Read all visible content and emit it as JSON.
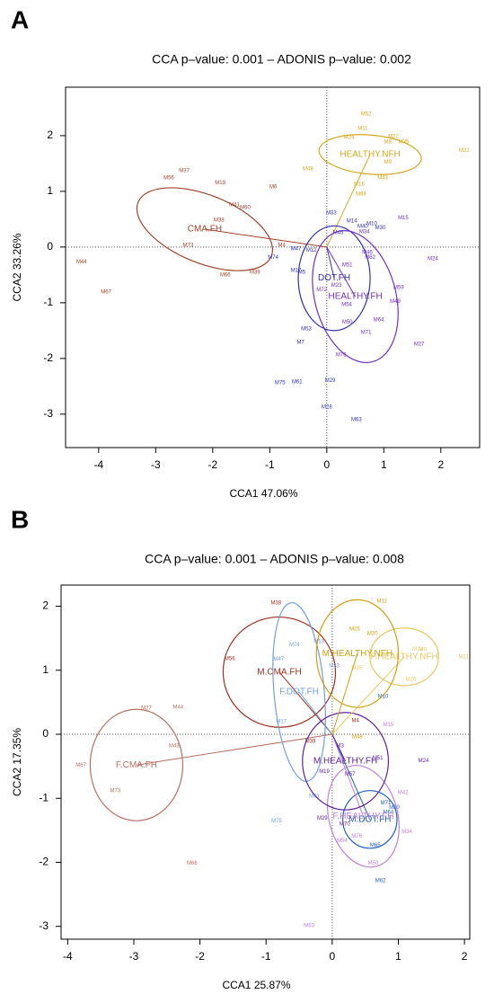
{
  "chart_data": [
    {
      "type": "scatter",
      "panel": "A",
      "title": "CCA p–value: 0.001 – ADONIS p–value: 0.002",
      "xlabel": "CCA1 47.06%",
      "ylabel": "CCA2 33.26%",
      "xlim": [
        -4.58,
        2.68
      ],
      "ylim": [
        -3.6,
        2.87
      ],
      "xticks": [
        -4,
        -3,
        -2,
        -1,
        0,
        1,
        2
      ],
      "yticks": [
        -3,
        -2,
        -1,
        0,
        1,
        2
      ],
      "series": [
        {
          "name": "HEALTHY.NFH",
          "color": "#d4a820",
          "labels": [
            "M52",
            "M11",
            "M24",
            "M22",
            "M8",
            "M35",
            "M9",
            "M48",
            "M43",
            "M21",
            "M16",
            "M69"
          ],
          "x": [
            0.69,
            0.63,
            0.39,
            1.17,
            1.07,
            1.35,
            1.07,
            -0.33,
            0.98,
            2.41,
            0.57,
            0.6
          ],
          "values": [
            2.39,
            2.13,
            1.97,
            1.98,
            1.89,
            1.89,
            1.52,
            1.4,
            1.24,
            1.73,
            1.13,
            0.95
          ],
          "centroid": [
            0.76,
            1.66
          ],
          "ellipse": {
            "rx": 0.9,
            "ry": 0.35,
            "angle": 5
          }
        },
        {
          "name": "CMA.FH",
          "color": "#a0442a",
          "labels": [
            "M37",
            "M56",
            "M19",
            "M6",
            "M41",
            "M60",
            "M38",
            "M73",
            "M4",
            "M66",
            "M39",
            "M44",
            "M67"
          ],
          "x": [
            -2.5,
            -2.77,
            -1.87,
            -0.94,
            -1.62,
            -1.43,
            -1.89,
            -2.43,
            -0.79,
            -1.78,
            -1.26,
            -4.3,
            -3.87
          ],
          "values": [
            1.37,
            1.24,
            1.15,
            1.08,
            0.76,
            0.71,
            0.48,
            0.03,
            0.03,
            -0.5,
            -0.45,
            -0.27,
            -0.81
          ],
          "centroid": [
            -2.14,
            0.32
          ],
          "ellipse": {
            "rx": 1.26,
            "ry": 0.61,
            "angle": 22
          }
        },
        {
          "name": "DOT.FH",
          "color": "#3030b0",
          "labels": [
            "M33",
            "M14",
            "M45",
            "M40",
            "M10",
            "M30",
            "M47",
            "M12",
            "M74",
            "M17",
            "M5",
            "M53",
            "M7",
            "M75",
            "M61",
            "M29",
            "M28",
            "M63"
          ],
          "x": [
            0.08,
            0.44,
            0.2,
            0.63,
            0.79,
            0.94,
            -0.54,
            -0.27,
            -0.94,
            -0.54,
            -0.44,
            -0.36,
            -0.46,
            -0.82,
            -0.52,
            0.06,
            0,
            0.52
          ],
          "values": [
            0.61,
            0.47,
            0.26,
            0.37,
            0.42,
            0.35,
            -0.03,
            -0.06,
            -0.19,
            -0.42,
            -0.45,
            -1.47,
            -1.71,
            -2.44,
            -2.42,
            -2.4,
            -2.87,
            -3.1
          ],
          "centroid": [
            0.13,
            -0.56
          ],
          "ellipse": {
            "rx": 0.63,
            "ry": 0.94,
            "angle": 0
          }
        },
        {
          "name": "HEALTHY.FH",
          "color": "#7030c0",
          "labels": [
            "M15",
            "M34",
            "M46",
            "M62",
            "M51",
            "M23",
            "M72",
            "M54",
            "M59",
            "M49",
            "M64",
            "M50",
            "M71",
            "M76",
            "M24",
            "M27"
          ],
          "x": [
            1.34,
            0.66,
            0.71,
            0.76,
            0.36,
            0.17,
            -0.09,
            0.35,
            1.26,
            1.2,
            0.91,
            0.36,
            0.69,
            0.25,
            1.86,
            1.62
          ],
          "values": [
            0.52,
            0.27,
            -0.1,
            -0.19,
            -0.32,
            -0.69,
            -0.77,
            -1.03,
            -0.73,
            -0.98,
            -1.31,
            -1.35,
            -1.53,
            -1.94,
            -0.21,
            -1.74
          ],
          "centroid": [
            0.5,
            -0.89
          ],
          "ellipse": {
            "rx": 0.71,
            "ry": 1.21,
            "angle": -15
          }
        }
      ]
    },
    {
      "type": "scatter",
      "panel": "B",
      "title": "CCA p–value: 0.001 – ADONIS p–value: 0.008",
      "xlabel": "CCA1 25.87%",
      "ylabel": "CCA2 17.35%",
      "xlim": [
        -4.1,
        2.08
      ],
      "ylim": [
        -3.2,
        2.33
      ],
      "xticks": [
        -4,
        -3,
        -2,
        -1,
        0,
        1,
        2
      ],
      "yticks": [
        -3,
        -2,
        -1,
        0,
        1,
        2
      ],
      "series": [
        {
          "name": "M.CMA.FH",
          "color": "#a03020",
          "labels": [
            "M38",
            "M56",
            "M4",
            "M39"
          ],
          "x": [
            -0.85,
            -1.55,
            0.35,
            -0.33
          ],
          "values": [
            2.05,
            1.18,
            0.21,
            -0.11
          ],
          "centroid": [
            -0.8,
            0.97
          ],
          "ellipse": {
            "rx": 0.85,
            "ry": 0.86,
            "angle": 10
          }
        },
        {
          "name": "F.CMA.FH",
          "color": "#b87060",
          "labels": [
            "M27",
            "M44",
            "M43",
            "M73",
            "M67",
            "M66"
          ],
          "x": [
            -2.81,
            -2.33,
            -2.39,
            -3.28,
            -3.8,
            -2.12
          ],
          "values": [
            0.41,
            0.42,
            -0.18,
            -0.88,
            -0.48,
            -2.01
          ],
          "centroid": [
            -2.96,
            -0.48
          ],
          "ellipse": {
            "rx": 0.7,
            "ry": 0.87,
            "angle": 0
          }
        },
        {
          "name": "F.DOT.FH",
          "color": "#70a0e0",
          "labels": [
            "M47",
            "M74",
            "M53",
            "M17",
            "M61",
            "M75",
            "M33"
          ],
          "x": [
            -0.81,
            -0.57,
            -0.2,
            -0.77,
            -0.27,
            -0.84,
            0.03
          ],
          "values": [
            1.17,
            1.4,
            1.45,
            0.2,
            -0.97,
            -1.35,
            1.07
          ],
          "centroid": [
            -0.5,
            0.66
          ],
          "ellipse": {
            "rx": 0.38,
            "ry": 1.4,
            "angle": -5
          }
        },
        {
          "name": "M.DOT.FH",
          "color": "#2060c0",
          "labels": [
            "M30",
            "M64",
            "M71",
            "M65",
            "M62",
            "M10"
          ],
          "x": [
            0.94,
            0.85,
            0.81,
            0.65,
            0.73,
            0.77
          ],
          "values": [
            -1.14,
            -1.22,
            -1.07,
            -1.73,
            -2.29,
            0.59
          ],
          "centroid": [
            0.57,
            -1.33
          ],
          "ellipse": {
            "rx": 0.41,
            "ry": 0.45,
            "angle": 0
          }
        },
        {
          "name": "F.HEALTHY.FH",
          "color": "#c080e0",
          "labels": [
            "M42",
            "M34",
            "M50",
            "M54",
            "M76",
            "M15",
            "M63"
          ],
          "x": [
            1.07,
            1.13,
            0.62,
            0.15,
            0.37,
            0.85,
            -0.35
          ],
          "values": [
            -0.91,
            -1.52,
            -2.01,
            -1.66,
            -1.59,
            0.15,
            -2.99
          ],
          "centroid": [
            0.47,
            -1.28
          ],
          "ellipse": {
            "rx": 0.52,
            "ry": 0.81,
            "angle": -15
          }
        },
        {
          "name": "M.HEALTHY.FH",
          "color": "#6020a0",
          "labels": [
            "M19",
            "M3",
            "M51",
            "M57",
            "M70",
            "M29",
            "M24"
          ],
          "x": [
            -0.12,
            0.12,
            0.69,
            0.27,
            0.19,
            -0.15,
            1.38
          ],
          "values": [
            -0.58,
            -0.18,
            -0.37,
            -0.62,
            -1.4,
            -1.31,
            -0.41
          ],
          "centroid": [
            0.2,
            -0.42
          ],
          "ellipse": {
            "rx": 0.65,
            "ry": 0.76,
            "angle": 0
          }
        },
        {
          "name": "F.HEALTHY.NFH",
          "color": "#e8c860",
          "labels": [
            "M8",
            "M72",
            "M26",
            "M21",
            "M35"
          ],
          "x": [
            1.37,
            1.29,
            1.19,
            1.99,
            0.37
          ],
          "values": [
            1.32,
            1.33,
            0.86,
            1.21,
            1.03
          ],
          "centroid": [
            1.09,
            1.21
          ],
          "ellipse": {
            "rx": 0.52,
            "ry": 0.45,
            "angle": 0
          }
        },
        {
          "name": "M.HEALTHY.NFH",
          "color": "#d0a010",
          "labels": [
            "M11",
            "M25",
            "M20",
            "M48"
          ],
          "x": [
            0.75,
            0.34,
            0.61,
            0.38
          ],
          "values": [
            2.08,
            1.64,
            1.57,
            -0.04
          ],
          "centroid": [
            0.38,
            1.26
          ],
          "ellipse": {
            "rx": 0.62,
            "ry": 0.84,
            "angle": 0
          }
        }
      ]
    }
  ]
}
